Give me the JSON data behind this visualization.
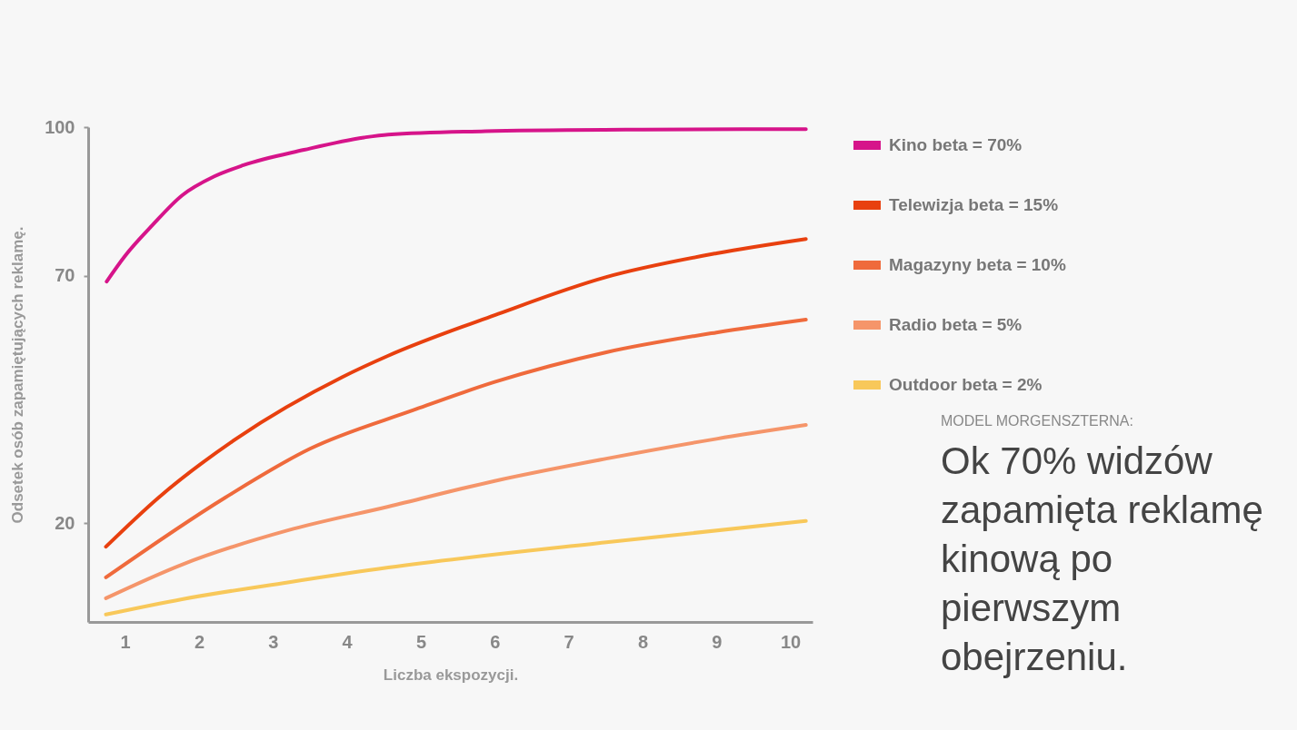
{
  "chart_data": {
    "type": "line",
    "xlabel": "Liczba ekspozycji.",
    "ylabel": "Odsetek osób zapamiętujących reklamę.",
    "xlim": [
      0.5,
      10.3
    ],
    "xticks": [
      1,
      2,
      3,
      4,
      5,
      6,
      7,
      8,
      9,
      10
    ],
    "ylim": [
      0,
      100
    ],
    "yticks": [
      20,
      70,
      100
    ],
    "grid": false,
    "legend": "top right",
    "marker": "none",
    "line_style": "solid",
    "series": [
      {
        "name": "Kino beta = 70%",
        "color": "#d6148a",
        "x": [
          0.75,
          1.0,
          1.37,
          1.77,
          2.2,
          2.6,
          3.42,
          4.23,
          4.56,
          6,
          8,
          10.21
        ],
        "values": [
          68.8,
          74,
          80.2,
          86.2,
          90,
          92.3,
          95.4,
          97.9,
          98.5,
          99.2,
          99.5,
          99.6
        ]
      },
      {
        "name": "Telewizja beta = 15%",
        "color": "#e8400f",
        "x": [
          0.74,
          1.45,
          2.5,
          3.94,
          4.56,
          6,
          7.51,
          9,
          10.21
        ],
        "values": [
          15.2,
          25.1,
          37,
          49.5,
          53.8,
          62,
          69.7,
          74.5,
          77.4
        ]
      },
      {
        "name": "Magazyny beta = 10%",
        "color": "#ef6a3c",
        "x": [
          0.74,
          2.35,
          3.5,
          4.9,
          6,
          7.51,
          9,
          10.21
        ],
        "values": [
          9.0,
          25.1,
          35,
          42.8,
          48.5,
          54.5,
          58.5,
          61.1
        ]
      },
      {
        "name": "Radio beta = 5%",
        "color": "#f5956a",
        "x": [
          0.74,
          1.77,
          3.2,
          4.56,
          6,
          7.51,
          9,
          10.21
        ],
        "values": [
          4.8,
          11.6,
          18.5,
          23.3,
          28.5,
          33,
          37,
          39.8
        ]
      },
      {
        "name": "Outdoor beta = 2%",
        "color": "#f8c85a",
        "x": [
          0.74,
          1.77,
          3.2,
          4.56,
          7.51,
          10.21
        ],
        "values": [
          1.5,
          4.6,
          8,
          11,
          16.1,
          20.4
        ]
      }
    ],
    "annotations": [
      "MODEL MORGENSZTERNA:",
      "Ok 70% widzów zapamięta reklamę kinową po pierwszym obejrzeniu."
    ]
  }
}
